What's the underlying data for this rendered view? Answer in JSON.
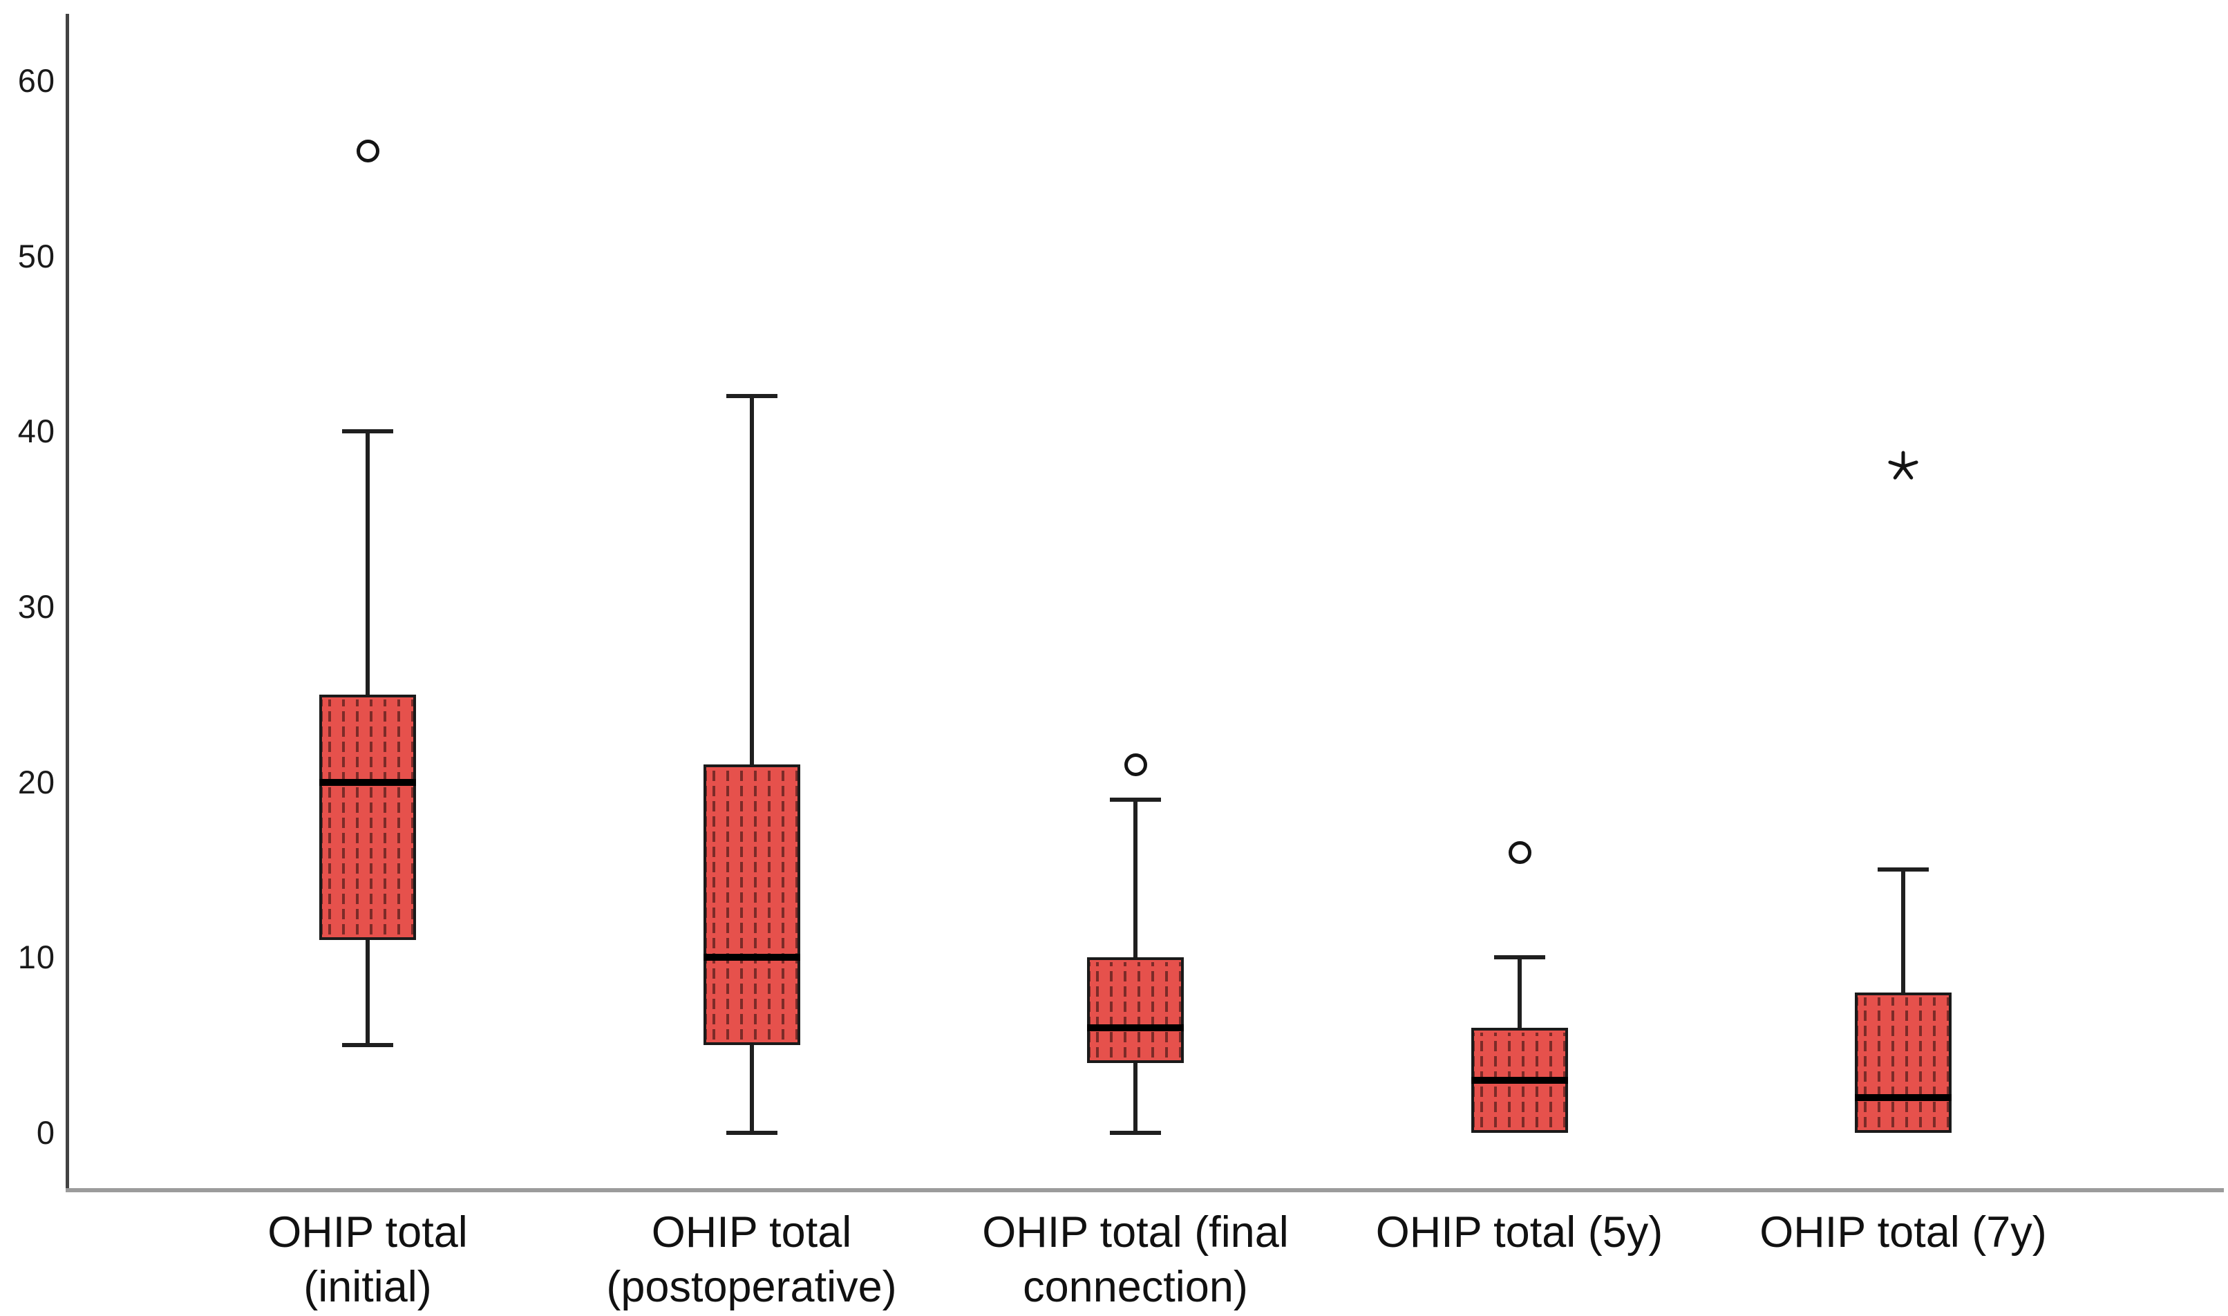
{
  "chart_data": {
    "type": "boxplot",
    "title": "",
    "xlabel": "",
    "ylabel": "",
    "ylim": [
      0,
      63.5
    ],
    "yticks": [
      0,
      10,
      20,
      30,
      40,
      50,
      60
    ],
    "grid": false,
    "legend": false,
    "categories": [
      {
        "label": "OHIP total (initial)",
        "label_lines": [
          "OHIP total",
          "(initial)"
        ]
      },
      {
        "label": "OHIP total (postoperative)",
        "label_lines": [
          "OHIP total",
          "(postoperative)"
        ]
      },
      {
        "label": "OHIP total (final connection)",
        "label_lines": [
          "OHIP total (final",
          "connection)"
        ]
      },
      {
        "label": "OHIP total (5y)",
        "label_lines": [
          "OHIP total (5y)"
        ]
      },
      {
        "label": "OHIP total (7y)",
        "label_lines": [
          "OHIP total (7y)"
        ]
      }
    ],
    "series": [
      {
        "name": "OHIP total (initial)",
        "whisker_low": 5,
        "q1": 11,
        "median": 20,
        "q3": 25,
        "whisker_high": 40,
        "outliers": [
          {
            "value": 56,
            "marker": "circle"
          }
        ]
      },
      {
        "name": "OHIP total (postoperative)",
        "whisker_low": 0,
        "q1": 5,
        "median": 10,
        "q3": 21,
        "whisker_high": 42,
        "outliers": []
      },
      {
        "name": "OHIP total (final connection)",
        "whisker_low": 0,
        "q1": 4,
        "median": 6,
        "q3": 10,
        "whisker_high": 19,
        "outliers": [
          {
            "value": 21,
            "marker": "circle"
          }
        ]
      },
      {
        "name": "OHIP total (5y)",
        "whisker_low": null,
        "q1": 0,
        "median": 3,
        "q3": 6,
        "whisker_high": 10,
        "outliers": [
          {
            "value": 16,
            "marker": "circle"
          }
        ]
      },
      {
        "name": "OHIP total (7y)",
        "whisker_low": null,
        "q1": 0,
        "median": 2,
        "q3": 8,
        "whisker_high": 15,
        "outliers": [
          {
            "value": 38,
            "marker": "star"
          }
        ]
      }
    ],
    "colors": {
      "background": "#ffffff",
      "box_fill": "#e6514c",
      "box_pattern": "#7c2b28",
      "box_border": "#1a1a1a",
      "median": "#000000",
      "whisker": "#1f1f1f",
      "outlier": "#141414",
      "y_axis_line": "#434343",
      "x_axis_line": "#9b9b9b",
      "tick_label": "#1a1a1a",
      "category_label": "#111111"
    }
  }
}
